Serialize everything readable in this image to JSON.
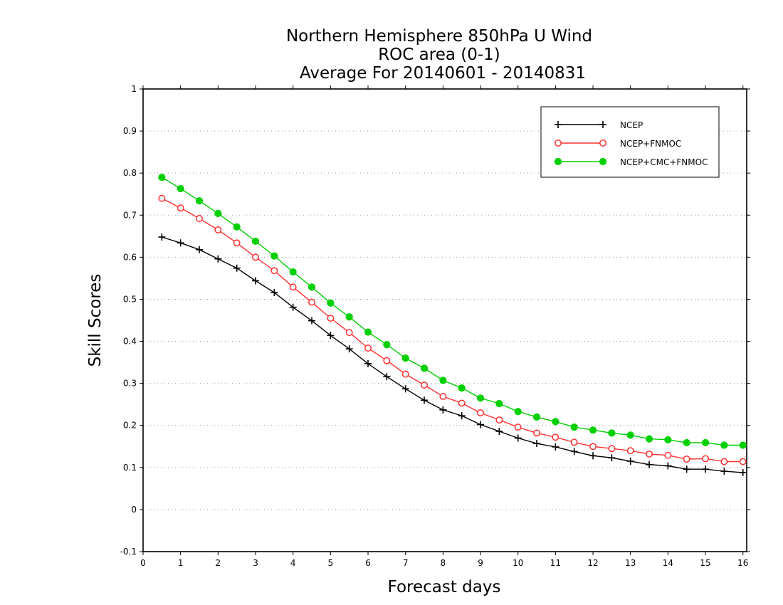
{
  "chart_data": {
    "type": "line",
    "title_lines": [
      "Northern Hemisphere 850hPa U Wind",
      "ROC area (0-1)",
      "Average For 20140601 - 20140831"
    ],
    "xlabel": "Forecast days",
    "ylabel": "Skill Scores",
    "xlim": [
      0,
      16.1
    ],
    "ylim": [
      -0.1,
      1
    ],
    "xticks": [
      "0",
      "1",
      "2",
      "3",
      "4",
      "5",
      "6",
      "7",
      "8",
      "9",
      "10",
      "11",
      "12",
      "13",
      "14",
      "15",
      "16"
    ],
    "yticks": [
      "-0.1",
      "0",
      "0.1",
      "0.2",
      "0.3",
      "0.4",
      "0.5",
      "0.6",
      "0.7",
      "0.8",
      "0.9",
      "1"
    ],
    "grid": true,
    "legend_position": "top-right",
    "x": [
      0.5,
      1,
      1.5,
      2,
      2.5,
      3,
      3.5,
      4,
      4.5,
      5,
      5.5,
      6,
      6.5,
      7,
      7.5,
      8,
      8.5,
      9,
      9.5,
      10,
      10.5,
      11,
      11.5,
      12,
      12.5,
      13,
      13.5,
      14,
      14.5,
      15,
      15.5,
      16
    ],
    "series": [
      {
        "name": "NCEP",
        "color": "#000000",
        "marker": "plus",
        "values": [
          0.648,
          0.634,
          0.618,
          0.596,
          0.574,
          0.544,
          0.516,
          0.481,
          0.449,
          0.414,
          0.382,
          0.347,
          0.316,
          0.287,
          0.26,
          0.237,
          0.223,
          0.202,
          0.186,
          0.17,
          0.157,
          0.149,
          0.138,
          0.128,
          0.123,
          0.115,
          0.107,
          0.104,
          0.096,
          0.096,
          0.091,
          0.088
        ]
      },
      {
        "name": "NCEP+FNMOC",
        "color": "#ff3030",
        "marker": "open-circle",
        "values": [
          0.74,
          0.717,
          0.692,
          0.665,
          0.634,
          0.6,
          0.568,
          0.529,
          0.493,
          0.455,
          0.421,
          0.384,
          0.354,
          0.322,
          0.296,
          0.269,
          0.253,
          0.23,
          0.213,
          0.196,
          0.182,
          0.172,
          0.16,
          0.15,
          0.145,
          0.14,
          0.132,
          0.129,
          0.12,
          0.121,
          0.114,
          0.114
        ]
      },
      {
        "name": "NCEP+CMC+FNMOC",
        "color": "#00d000",
        "marker": "filled-circle",
        "values": [
          0.79,
          0.763,
          0.734,
          0.704,
          0.672,
          0.638,
          0.603,
          0.565,
          0.529,
          0.491,
          0.458,
          0.422,
          0.392,
          0.36,
          0.336,
          0.307,
          0.289,
          0.265,
          0.252,
          0.233,
          0.22,
          0.209,
          0.196,
          0.189,
          0.182,
          0.177,
          0.168,
          0.166,
          0.159,
          0.159,
          0.153,
          0.153
        ]
      }
    ]
  }
}
